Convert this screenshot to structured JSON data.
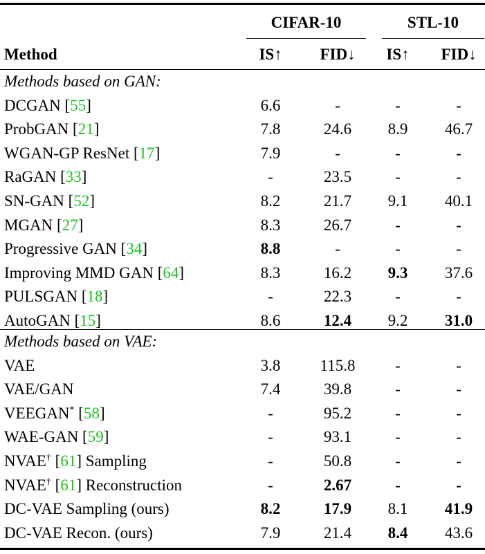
{
  "header": {
    "method": "Method",
    "group1": "CIFAR-10",
    "group2": "STL-10",
    "cols": [
      "IS↑",
      "FID↓",
      "IS↑",
      "FID↓"
    ]
  },
  "sections": [
    {
      "title": "Methods based on GAN:",
      "rows": [
        {
          "name": "DCGAN [",
          "ref": "55",
          "suffix": "]",
          "sup": "",
          "vals": [
            "6.6",
            "-",
            "-",
            "-"
          ],
          "bold": [
            false,
            false,
            false,
            false
          ]
        },
        {
          "name": "ProbGAN [",
          "ref": "21",
          "suffix": "]",
          "sup": "",
          "vals": [
            "7.8",
            "24.6",
            "8.9",
            "46.7"
          ],
          "bold": [
            false,
            false,
            false,
            false
          ]
        },
        {
          "name": "WGAN-GP ResNet [",
          "ref": "17",
          "suffix": "]",
          "sup": "",
          "vals": [
            "7.9",
            "-",
            "-",
            "-"
          ],
          "bold": [
            false,
            false,
            false,
            false
          ]
        },
        {
          "name": "RaGAN [",
          "ref": "33",
          "suffix": "]",
          "sup": "",
          "vals": [
            "-",
            "23.5",
            "-",
            "-"
          ],
          "bold": [
            false,
            false,
            false,
            false
          ]
        },
        {
          "name": "SN-GAN [",
          "ref": "52",
          "suffix": "]",
          "sup": "",
          "vals": [
            "8.2",
            "21.7",
            "9.1",
            "40.1"
          ],
          "bold": [
            false,
            false,
            false,
            false
          ]
        },
        {
          "name": "MGAN [",
          "ref": "27",
          "suffix": "]",
          "sup": "",
          "vals": [
            "8.3",
            "26.7",
            "-",
            "-"
          ],
          "bold": [
            false,
            false,
            false,
            false
          ]
        },
        {
          "name": "Progressive GAN [",
          "ref": "34",
          "suffix": "]",
          "sup": "",
          "vals": [
            "8.8",
            "-",
            "-",
            "-"
          ],
          "bold": [
            true,
            false,
            false,
            false
          ]
        },
        {
          "name": "Improving MMD GAN [",
          "ref": "64",
          "suffix": "]",
          "sup": "",
          "vals": [
            "8.3",
            "16.2",
            "9.3",
            "37.6"
          ],
          "bold": [
            false,
            false,
            true,
            false
          ]
        },
        {
          "name": "PULSGAN [",
          "ref": "18",
          "suffix": "]",
          "sup": "",
          "vals": [
            "-",
            "22.3",
            "-",
            "-"
          ],
          "bold": [
            false,
            false,
            false,
            false
          ]
        },
        {
          "name": "AutoGAN [",
          "ref": "15",
          "suffix": "]",
          "sup": "",
          "vals": [
            "8.6",
            "12.4",
            "9.2",
            "31.0"
          ],
          "bold": [
            false,
            true,
            false,
            true
          ]
        }
      ]
    },
    {
      "title": "Methods based on VAE:",
      "rows": [
        {
          "name": "VAE",
          "ref": "",
          "suffix": "",
          "sup": "",
          "vals": [
            "3.8",
            "115.8",
            "-",
            "-"
          ],
          "bold": [
            false,
            false,
            false,
            false
          ]
        },
        {
          "name": "VAE/GAN",
          "ref": "",
          "suffix": "",
          "sup": "",
          "vals": [
            "7.4",
            "39.8",
            "-",
            "-"
          ],
          "bold": [
            false,
            false,
            false,
            false
          ]
        },
        {
          "name": "VEEGAN",
          "sup": "*",
          "pre": " [",
          "ref": "58",
          "suffix": "]",
          "vals": [
            "-",
            "95.2",
            "-",
            "-"
          ],
          "bold": [
            false,
            false,
            false,
            false
          ]
        },
        {
          "name": "WAE-GAN [",
          "ref": "59",
          "suffix": "]",
          "sup": "",
          "vals": [
            "-",
            "93.1",
            "-",
            "-"
          ],
          "bold": [
            false,
            false,
            false,
            false
          ]
        },
        {
          "name": "NVAE",
          "sup": "†",
          "pre": " [",
          "ref": "61",
          "suffix": "] Sampling",
          "vals": [
            "-",
            "50.8",
            "-",
            "-"
          ],
          "bold": [
            false,
            false,
            false,
            false
          ]
        },
        {
          "name": "NVAE",
          "sup": "†",
          "pre": " [",
          "ref": "61",
          "suffix": "] Reconstruction",
          "vals": [
            "-",
            "2.67",
            "-",
            "-"
          ],
          "bold": [
            false,
            true,
            false,
            false
          ]
        },
        {
          "name": "DC-VAE Sampling (ours)",
          "ref": "",
          "suffix": "",
          "sup": "",
          "vals": [
            "8.2",
            "17.9",
            "8.1",
            "41.9"
          ],
          "bold": [
            true,
            true,
            false,
            true
          ]
        },
        {
          "name": "DC-VAE Recon. (ours)",
          "ref": "",
          "suffix": "",
          "sup": "",
          "vals": [
            "7.9",
            "21.4",
            "8.4",
            "43.6"
          ],
          "bold": [
            false,
            false,
            true,
            false
          ]
        }
      ]
    }
  ]
}
